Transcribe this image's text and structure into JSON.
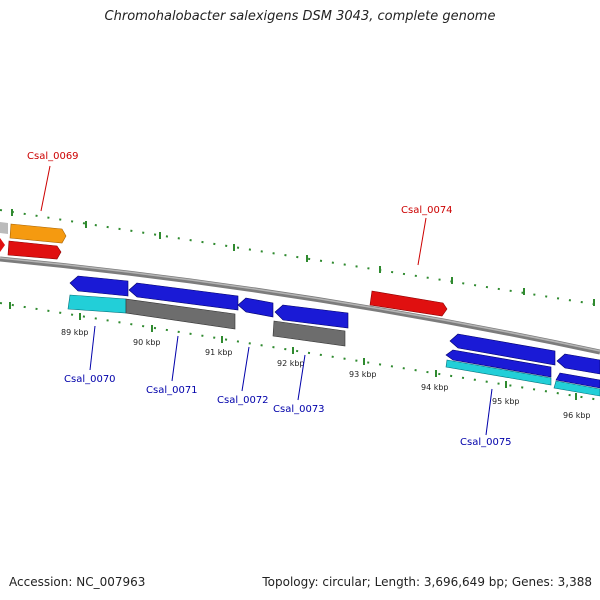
{
  "map": {
    "title": "Chromohalobacter salexigens DSM 3043, complete genome",
    "accession": "Accession: NC_007963",
    "summary": "Topology: circular; Length: 3,696,649 bp; Genes: 3,388",
    "colors": {
      "backbone": "#888888",
      "ticks": "#2f8a2f",
      "forward_label": "#cc0000",
      "reverse_label": "#0000aa",
      "blue": "#1a1ad6",
      "red": "#e01010",
      "orange": "#f59a10",
      "cyan": "#22cfd8",
      "gray": "#6d6d6d",
      "lightgray": "#bbbbbb"
    },
    "kbp_labels": [
      "89 kbp",
      "90 kbp",
      "91 kbp",
      "92 kbp",
      "93 kbp",
      "94 kbp",
      "95 kbp",
      "96 kbp"
    ],
    "gene_labels": [
      {
        "id": "csal-0069",
        "text": "Csal_0069",
        "strand": "forward"
      },
      {
        "id": "csal-0074",
        "text": "Csal_0074",
        "strand": "forward"
      },
      {
        "id": "csal-0070",
        "text": "Csal_0070",
        "strand": "reverse"
      },
      {
        "id": "csal-0071",
        "text": "Csal_0071",
        "strand": "reverse"
      },
      {
        "id": "csal-0072",
        "text": "Csal_0072",
        "strand": "reverse"
      },
      {
        "id": "csal-0073",
        "text": "Csal_0073",
        "strand": "reverse"
      },
      {
        "id": "csal-0075",
        "text": "Csal_0075",
        "strand": "reverse"
      }
    ]
  }
}
